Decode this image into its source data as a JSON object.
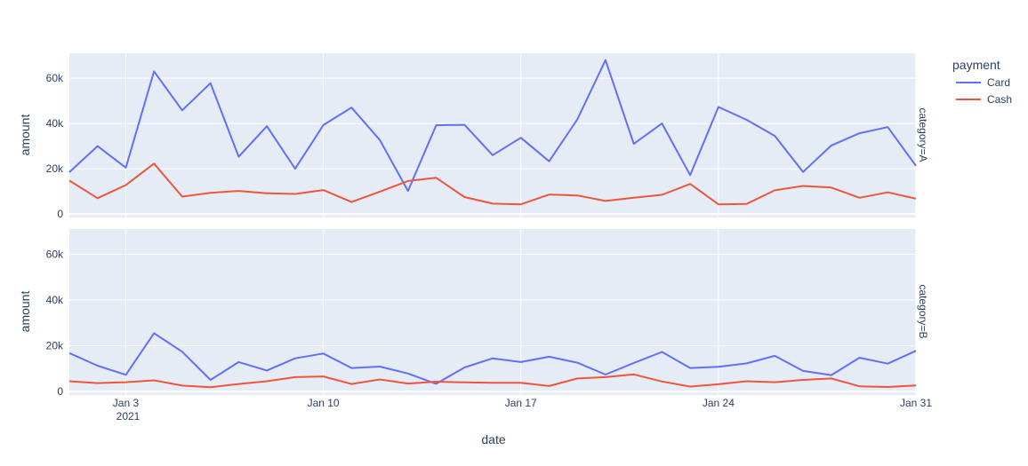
{
  "chart_data": {
    "type": "line",
    "x": [
      "2021-01-01",
      "2021-01-02",
      "2021-01-03",
      "2021-01-04",
      "2021-01-05",
      "2021-01-06",
      "2021-01-07",
      "2021-01-08",
      "2021-01-09",
      "2021-01-10",
      "2021-01-11",
      "2021-01-12",
      "2021-01-13",
      "2021-01-14",
      "2021-01-15",
      "2021-01-16",
      "2021-01-17",
      "2021-01-18",
      "2021-01-19",
      "2021-01-20",
      "2021-01-21",
      "2021-01-22",
      "2021-01-23",
      "2021-01-24",
      "2021-01-25",
      "2021-01-26",
      "2021-01-27",
      "2021-01-28",
      "2021-01-29",
      "2021-01-30",
      "2021-01-31"
    ],
    "xlabel": "date",
    "x_ticks": [
      "Jan 3",
      "Jan 10",
      "Jan 17",
      "Jan 24",
      "Jan 31"
    ],
    "x_tick_sublabel": "2021",
    "ylabel": "amount",
    "y_ticks": [
      "0",
      "20k",
      "40k",
      "60k"
    ],
    "ylim": [
      -1500,
      71000
    ],
    "legend_title": "payment",
    "legend_placement": "right",
    "grid": true,
    "series_meta": [
      {
        "name": "Card",
        "color": "#636efa"
      },
      {
        "name": "Cash",
        "color": "#EF553B"
      }
    ],
    "facets": [
      {
        "label": "category=A",
        "series": [
          {
            "name": "Card",
            "values": [
              18500,
              30000,
              20500,
              63000,
              45800,
              57800,
              25300,
              38800,
              20000,
              39300,
              47000,
              32700,
              10200,
              39200,
              39400,
              26000,
              33700,
              23300,
              41800,
              68000,
              31000,
              40000,
              17200,
              47300,
              41600,
              34500,
              18600,
              30300,
              35700,
              38400,
              21300
            ]
          },
          {
            "name": "Cash",
            "values": [
              14800,
              7000,
              12800,
              22300,
              7700,
              9400,
              10200,
              9200,
              8900,
              10600,
              5300,
              9900,
              14600,
              16000,
              7500,
              4600,
              4300,
              8600,
              8200,
              5800,
              7200,
              8500,
              13300,
              4300,
              4500,
              10500,
              12400,
              11700,
              7200,
              9600,
              6800
            ]
          }
        ]
      },
      {
        "label": "category=B",
        "series": [
          {
            "name": "Card",
            "values": [
              16800,
              11300,
              7300,
              25500,
              17400,
              5100,
              12900,
              9200,
              14500,
              16600,
              10300,
              10900,
              7900,
              3400,
              10500,
              14500,
              12900,
              15200,
              12600,
              7400,
              12500,
              17300,
              10300,
              10800,
              12300,
              15600,
              9000,
              7200,
              14800,
              12200,
              17800
            ]
          },
          {
            "name": "Cash",
            "values": [
              4500,
              3700,
              4100,
              4900,
              2600,
              1900,
              3300,
              4500,
              6300,
              6600,
              3300,
              5300,
              3500,
              4300,
              4000,
              3800,
              3800,
              2400,
              5700,
              6300,
              7500,
              4400,
              2200,
              3200,
              4500,
              4100,
              5100,
              5700,
              2300,
              2000,
              2700
            ]
          }
        ]
      }
    ]
  }
}
